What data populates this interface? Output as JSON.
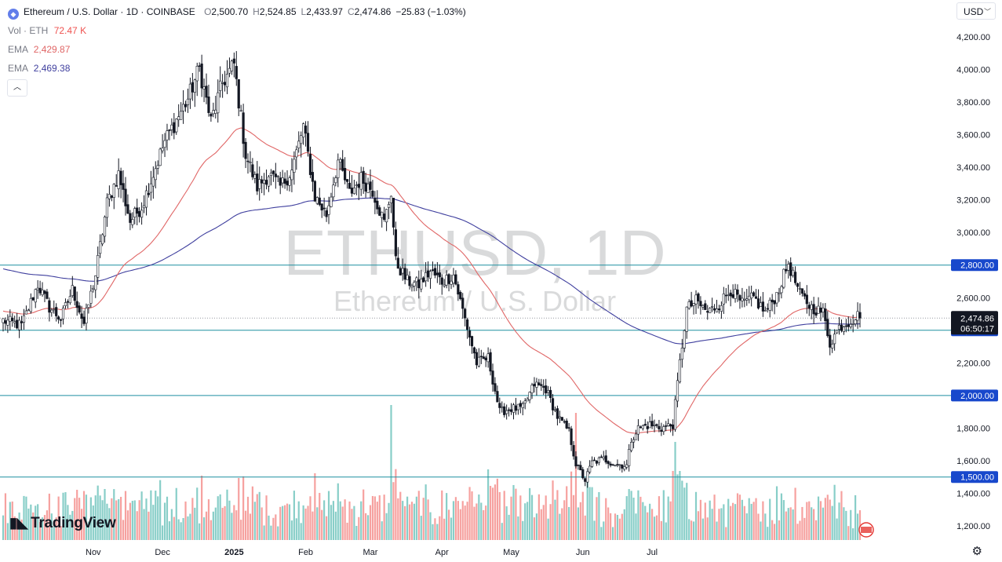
{
  "legend": {
    "title": "Ethereum / U.S. Dollar · 1D · COINBASE",
    "o_label": "O",
    "o": "2,500.70",
    "h_label": "H",
    "h": "2,524.85",
    "l_label": "L",
    "l": "2,433.97",
    "c_label": "C",
    "c": "2,474.86",
    "change": "−25.83 (−1.03%)",
    "vol_label": "Vol · ETH",
    "vol": "72.47 K",
    "ema1_label": "EMA",
    "ema1": "2,429.87",
    "ema2_label": "EMA",
    "ema2": "2,469.38"
  },
  "currency": "USD",
  "watermark": {
    "symbol": "ETHUSD, 1D",
    "name": "Ethereum / U.S. Dollar"
  },
  "brand": "TradingView",
  "colors": {
    "up": "#26a69a",
    "down": "#ef5350",
    "ema_fast": "#e06666",
    "ema_slow": "#3f3f9e",
    "hline": "#1f8fa0",
    "label_bg": "#1848cc",
    "price_bg": "#131722"
  },
  "chart_data": {
    "type": "candlestick",
    "symbol": "ETHUSD",
    "timeframe": "1D",
    "exchange": "COINBASE",
    "y_range": [
      1150,
      4300
    ],
    "y_ticks": [
      {
        "v": 4200,
        "label": "4,200.00"
      },
      {
        "v": 4000,
        "label": "4,000.00"
      },
      {
        "v": 3800,
        "label": "3,800.00"
      },
      {
        "v": 3600,
        "label": "3,600.00"
      },
      {
        "v": 3400,
        "label": "3,400.00"
      },
      {
        "v": 3200,
        "label": "3,200.00"
      },
      {
        "v": 3000,
        "label": "3,000.00"
      },
      {
        "v": 2600,
        "label": "2,600.00"
      },
      {
        "v": 2200,
        "label": "2,200.00"
      },
      {
        "v": 1800,
        "label": "1,800.00"
      },
      {
        "v": 1600,
        "label": "1,600.00"
      },
      {
        "v": 1400,
        "label": "1,400.00"
      },
      {
        "v": 1200,
        "label": "1,200.00"
      }
    ],
    "x_ticks": [
      "Nov",
      "Dec",
      "2025",
      "Feb",
      "Mar",
      "Apr",
      "May",
      "Jun",
      "Jul"
    ],
    "horizontal_levels": [
      {
        "v": 2800,
        "label": "2,800.00"
      },
      {
        "v": 2400,
        "label": "2,400.00"
      },
      {
        "v": 2000,
        "label": "2,000.00"
      },
      {
        "v": 1500,
        "label": "1,500.00"
      }
    ],
    "last_price": {
      "v": 2474.86,
      "label": "2,474.86",
      "countdown": "06:50:17"
    },
    "price_anchors": [
      [
        0,
        2460
      ],
      [
        8,
        2430
      ],
      [
        15,
        2680
      ],
      [
        20,
        2540
      ],
      [
        25,
        2470
      ],
      [
        30,
        2650
      ],
      [
        35,
        2440
      ],
      [
        40,
        2740
      ],
      [
        45,
        3180
      ],
      [
        50,
        3360
      ],
      [
        55,
        3070
      ],
      [
        60,
        3160
      ],
      [
        65,
        3360
      ],
      [
        70,
        3560
      ],
      [
        75,
        3690
      ],
      [
        80,
        3820
      ],
      [
        85,
        4010
      ],
      [
        90,
        3680
      ],
      [
        95,
        3920
      ],
      [
        100,
        4030
      ],
      [
        105,
        3480
      ],
      [
        110,
        3280
      ],
      [
        115,
        3360
      ],
      [
        120,
        3280
      ],
      [
        125,
        3380
      ],
      [
        130,
        3650
      ],
      [
        135,
        3220
      ],
      [
        140,
        3110
      ],
      [
        145,
        3440
      ],
      [
        150,
        3240
      ],
      [
        155,
        3330
      ],
      [
        160,
        3260
      ],
      [
        165,
        3060
      ],
      [
        168,
        3250
      ],
      [
        170,
        2820
      ],
      [
        175,
        2700
      ],
      [
        180,
        2680
      ],
      [
        185,
        2760
      ],
      [
        190,
        2700
      ],
      [
        195,
        2740
      ],
      [
        200,
        2470
      ],
      [
        205,
        2200
      ],
      [
        210,
        2230
      ],
      [
        215,
        1900
      ],
      [
        220,
        1920
      ],
      [
        225,
        1920
      ],
      [
        230,
        2070
      ],
      [
        235,
        2040
      ],
      [
        240,
        1870
      ],
      [
        245,
        1780
      ],
      [
        248,
        1580
      ],
      [
        252,
        1480
      ],
      [
        255,
        1590
      ],
      [
        260,
        1610
      ],
      [
        265,
        1580
      ],
      [
        270,
        1570
      ],
      [
        272,
        1730
      ],
      [
        275,
        1800
      ],
      [
        280,
        1820
      ],
      [
        285,
        1800
      ],
      [
        290,
        1820
      ],
      [
        293,
        2200
      ],
      [
        296,
        2530
      ],
      [
        300,
        2580
      ],
      [
        305,
        2510
      ],
      [
        310,
        2560
      ],
      [
        315,
        2650
      ],
      [
        320,
        2560
      ],
      [
        325,
        2600
      ],
      [
        330,
        2510
      ],
      [
        335,
        2620
      ],
      [
        340,
        2810
      ],
      [
        345,
        2620
      ],
      [
        350,
        2540
      ],
      [
        355,
        2510
      ],
      [
        358,
        2320
      ],
      [
        362,
        2420
      ],
      [
        367,
        2460
      ],
      [
        370,
        2490
      ],
      [
        371,
        2475
      ]
    ],
    "series": [
      {
        "name": "EMA",
        "value": "2,429.87"
      },
      {
        "name": "EMA",
        "value": "2,469.38"
      }
    ]
  }
}
